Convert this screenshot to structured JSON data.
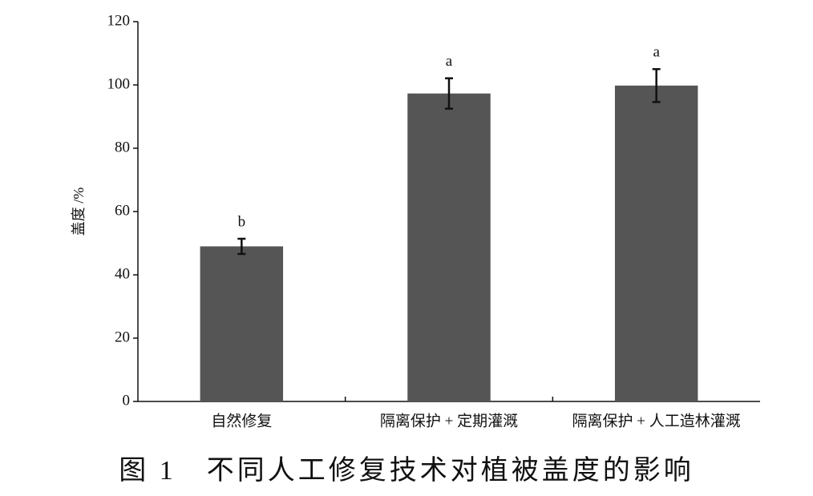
{
  "chart_data": {
    "type": "bar",
    "y_label": "盖度 /%",
    "caption": "图 1　不同人工修复技术对植被盖度的影响",
    "categories": [
      "自然修复",
      "隔离保护 + 定期灌溉",
      "隔离保护 + 人工造林灌溉"
    ],
    "values": [
      49,
      97.3,
      99.8
    ],
    "errors": [
      2.4,
      4.8,
      5.2
    ],
    "annotations": [
      "b",
      "a",
      "a"
    ],
    "color": "#555555",
    "ylim": [
      0,
      120
    ],
    "yticks": [
      0,
      20,
      40,
      60,
      80,
      100,
      120
    ],
    "grid": false
  }
}
